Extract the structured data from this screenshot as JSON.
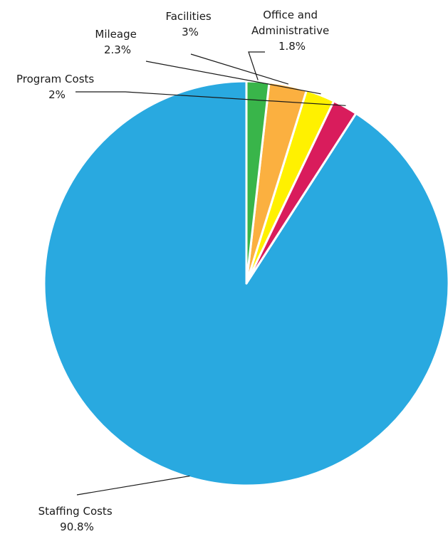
{
  "chart_data": {
    "type": "pie",
    "title": "",
    "start": "12 o'clock",
    "direction": "counterclockwise",
    "slices": [
      {
        "label": "Staffing Costs",
        "value": 90.8,
        "value_label": "90.8%",
        "color": "#29a9e0"
      },
      {
        "label": "Program Costs",
        "value": 2,
        "value_label": "2%",
        "color": "#d91c5c"
      },
      {
        "label": "Mileage",
        "value": 2.3,
        "value_label": "2.3%",
        "color": "#fff100"
      },
      {
        "label": "Facilities",
        "value": 3,
        "value_label": "3%",
        "color": "#fbb040"
      },
      {
        "label": "Office and Administrative",
        "value": 1.8,
        "value_label": "1.8%",
        "color": "#39b54a"
      }
    ]
  }
}
